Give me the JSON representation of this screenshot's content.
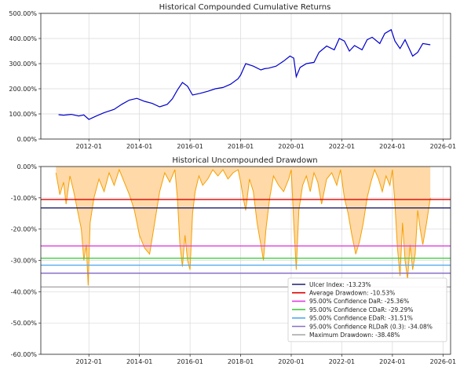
{
  "chart_data": [
    {
      "type": "line",
      "title": "Historical Compounded Cumulative Returns",
      "xlabel": "",
      "ylabel": "",
      "x_tick_labels": [
        "2012-01",
        "2014-01",
        "2016-01",
        "2018-01",
        "2020-01",
        "2022-01",
        "2024-01",
        "2026-01"
      ],
      "x_ticks_year": [
        2012,
        2014,
        2016,
        2018,
        2020,
        2022,
        2024,
        2026
      ],
      "xlim_year": [
        2010.1,
        2026.3
      ],
      "y_tick_labels": [
        "0.00%",
        "100.00%",
        "200.00%",
        "300.00%",
        "400.00%",
        "500.00%"
      ],
      "y_ticks": [
        0,
        100,
        200,
        300,
        400,
        500
      ],
      "ylim": [
        0,
        500
      ],
      "grid": true,
      "line_color": "#0000cc",
      "series": [
        {
          "name": "Cumulative Return",
          "x_year": [
            2010.8,
            2011.0,
            2011.3,
            2011.6,
            2011.8,
            2012.0,
            2012.3,
            2012.6,
            2013.0,
            2013.3,
            2013.6,
            2013.9,
            2014.2,
            2014.5,
            2014.8,
            2015.1,
            2015.3,
            2015.5,
            2015.7,
            2015.9,
            2016.1,
            2016.4,
            2016.7,
            2017.0,
            2017.3,
            2017.6,
            2017.9,
            2018.0,
            2018.2,
            2018.5,
            2018.8,
            2018.95,
            2019.1,
            2019.4,
            2019.7,
            2019.95,
            2020.1,
            2020.2,
            2020.35,
            2020.6,
            2020.9,
            2021.1,
            2021.4,
            2021.7,
            2021.9,
            2022.1,
            2022.3,
            2022.5,
            2022.8,
            2023.0,
            2023.2,
            2023.5,
            2023.7,
            2023.95,
            2024.1,
            2024.3,
            2024.5,
            2024.8,
            2025.0,
            2025.2,
            2025.5
          ],
          "values": [
            97,
            95,
            98,
            92,
            96,
            78,
            92,
            105,
            118,
            138,
            155,
            162,
            150,
            142,
            128,
            138,
            160,
            195,
            225,
            210,
            175,
            182,
            190,
            200,
            205,
            218,
            240,
            255,
            300,
            290,
            275,
            280,
            282,
            290,
            310,
            330,
            322,
            248,
            285,
            300,
            305,
            345,
            370,
            355,
            400,
            390,
            350,
            372,
            355,
            395,
            405,
            380,
            420,
            435,
            390,
            360,
            395,
            330,
            345,
            380,
            375
          ]
        }
      ]
    },
    {
      "type": "area",
      "title": "Historical Uncompounded Drawdown",
      "xlabel": "",
      "ylabel": "",
      "x_tick_labels": [
        "2012-01",
        "2014-01",
        "2016-01",
        "2018-01",
        "2020-01",
        "2022-01",
        "2024-01",
        "2026-01"
      ],
      "x_ticks_year": [
        2012,
        2014,
        2016,
        2018,
        2020,
        2022,
        2024,
        2026
      ],
      "xlim_year": [
        2010.1,
        2026.3
      ],
      "y_tick_labels": [
        "0.00%",
        "-10.00%",
        "-20.00%",
        "-30.00%",
        "-40.00%",
        "-50.00%",
        "-60.00%"
      ],
      "y_ticks": [
        0,
        -10,
        -20,
        -30,
        -40,
        -50,
        -60
      ],
      "ylim": [
        -60,
        0
      ],
      "grid": true,
      "fill_color": "#ffd9a8",
      "line_color": "#f5a000",
      "series": [
        {
          "name": "Drawdown",
          "x_year": [
            2010.7,
            2010.85,
            2011.0,
            2011.1,
            2011.25,
            2011.4,
            2011.55,
            2011.7,
            2011.8,
            2011.9,
            2011.97,
            2012.05,
            2012.2,
            2012.4,
            2012.6,
            2012.8,
            2013.0,
            2013.2,
            2013.4,
            2013.6,
            2013.8,
            2014.0,
            2014.2,
            2014.4,
            2014.6,
            2014.8,
            2015.0,
            2015.2,
            2015.4,
            2015.5,
            2015.6,
            2015.7,
            2015.8,
            2015.9,
            2016.0,
            2016.1,
            2016.2,
            2016.35,
            2016.5,
            2016.7,
            2016.9,
            2017.1,
            2017.3,
            2017.5,
            2017.7,
            2017.9,
            2018.0,
            2018.1,
            2018.2,
            2018.35,
            2018.5,
            2018.65,
            2018.8,
            2018.9,
            2019.0,
            2019.15,
            2019.3,
            2019.5,
            2019.7,
            2019.9,
            2020.0,
            2020.1,
            2020.2,
            2020.3,
            2020.45,
            2020.6,
            2020.75,
            2020.9,
            2021.05,
            2021.2,
            2021.4,
            2021.6,
            2021.8,
            2021.95,
            2022.1,
            2022.25,
            2022.4,
            2022.55,
            2022.7,
            2022.85,
            2023.0,
            2023.15,
            2023.3,
            2023.45,
            2023.6,
            2023.75,
            2023.9,
            2024.0,
            2024.1,
            2024.2,
            2024.3,
            2024.4,
            2024.5,
            2024.6,
            2024.7,
            2024.8,
            2024.9,
            2025.0,
            2025.1,
            2025.2,
            2025.35,
            2025.5
          ],
          "values": [
            -2,
            -9,
            -5,
            -12,
            -3,
            -8,
            -14,
            -20,
            -30,
            -25,
            -38,
            -18,
            -10,
            -4,
            -8,
            -2,
            -6,
            -1,
            -5,
            -9,
            -14,
            -22,
            -26,
            -28,
            -18,
            -8,
            -2,
            -5,
            -1,
            -10,
            -25,
            -32,
            -22,
            -30,
            -33,
            -15,
            -8,
            -3,
            -6,
            -4,
            -1,
            -3,
            -1,
            -4,
            -2,
            -1,
            -5,
            -10,
            -14,
            -4,
            -8,
            -18,
            -25,
            -30,
            -20,
            -10,
            -3,
            -6,
            -8,
            -4,
            -1,
            -18,
            -33,
            -14,
            -6,
            -3,
            -8,
            -2,
            -5,
            -12,
            -4,
            -2,
            -6,
            -1,
            -10,
            -15,
            -22,
            -28,
            -24,
            -18,
            -10,
            -5,
            -1,
            -4,
            -8,
            -3,
            -6,
            -1,
            -12,
            -26,
            -35,
            -18,
            -30,
            -36,
            -25,
            -33,
            -28,
            -14,
            -20,
            -25,
            -18,
            -10
          ]
        }
      ],
      "lines": [
        {
          "label": "Ulcer Index: -13.23%",
          "value": -13.23,
          "color": "#1f1f6e"
        },
        {
          "label": "Average Drawdown: -10.53%",
          "value": -10.53,
          "color": "#dd0000"
        },
        {
          "label": "95.00% Confidence DaR: -25.36%",
          "value": -25.36,
          "color": "#e040e0"
        },
        {
          "label": "95.00% Confidence CDaR: -29.29%",
          "value": -29.29,
          "color": "#44cc44"
        },
        {
          "label": "95.00% Confidence EDaR: -31.51%",
          "value": -31.51,
          "color": "#55aaee"
        },
        {
          "label": "95.00% Confidence RLDaR (0.3): -34.08%",
          "value": -34.08,
          "color": "#8a70c8"
        },
        {
          "label": "Maximum Drawdown: -38.48%",
          "value": -38.48,
          "color": "#aaaaaa"
        }
      ],
      "legend_position": "lower-right"
    }
  ]
}
